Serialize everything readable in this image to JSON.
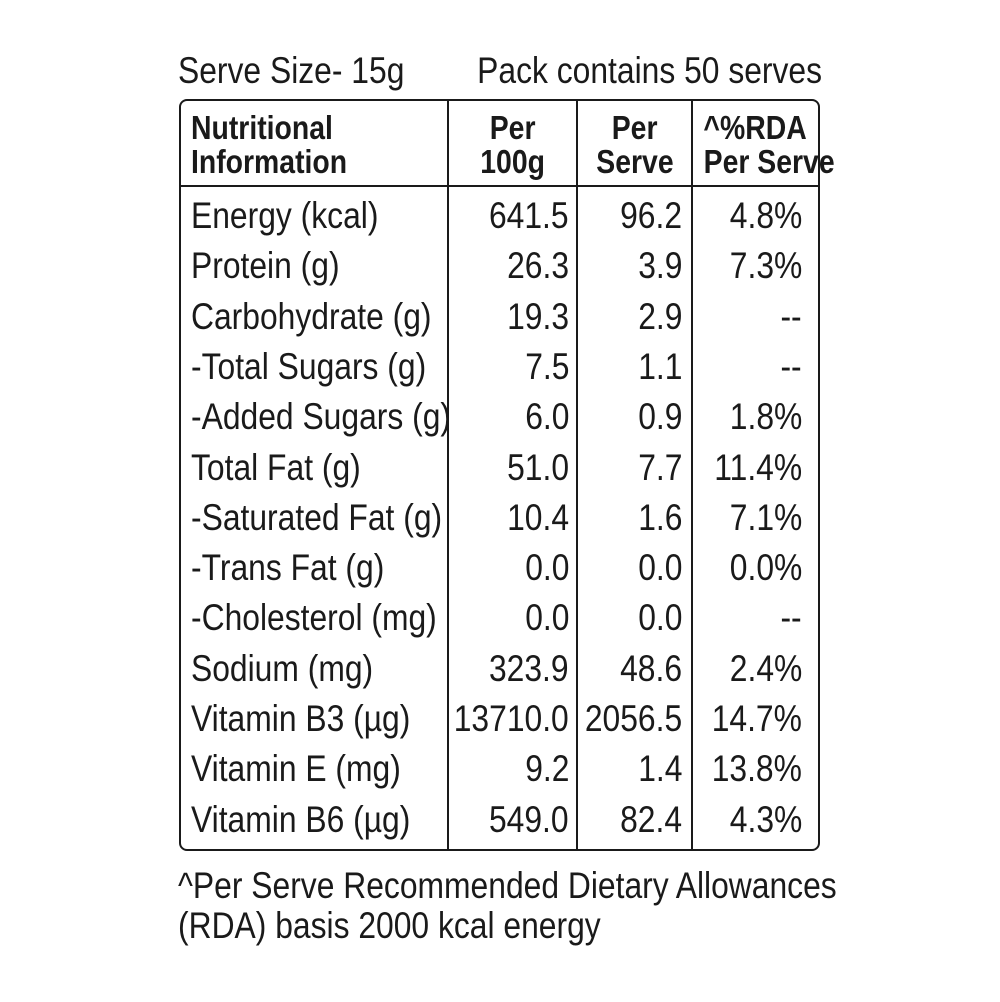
{
  "header": {
    "serve_size": "Serve Size- 15g",
    "pack_contains": "Pack contains 50 serves"
  },
  "table": {
    "columns": {
      "nutrient": [
        "Nutritional",
        "Information"
      ],
      "per_100g": [
        "Per",
        "100g"
      ],
      "per_serve": [
        "Per",
        "Serve"
      ],
      "rda": [
        "^%RDA",
        "Per Serve"
      ]
    },
    "rows": [
      {
        "name": "Energy (kcal)",
        "per_100g": "641.5",
        "per_serve": "96.2",
        "rda": "4.8%"
      },
      {
        "name": "Protein (g)",
        "per_100g": "26.3",
        "per_serve": "3.9",
        "rda": "7.3%"
      },
      {
        "name": "Carbohydrate (g)",
        "per_100g": "19.3",
        "per_serve": "2.9",
        "rda": "--"
      },
      {
        "name": "-Total Sugars (g)",
        "per_100g": "7.5",
        "per_serve": "1.1",
        "rda": "--"
      },
      {
        "name": "-Added Sugars (g)",
        "per_100g": "6.0",
        "per_serve": "0.9",
        "rda": "1.8%"
      },
      {
        "name": "Total Fat (g)",
        "per_100g": "51.0",
        "per_serve": "7.7",
        "rda": "11.4%"
      },
      {
        "name": "-Saturated Fat (g)",
        "per_100g": "10.4",
        "per_serve": "1.6",
        "rda": "7.1%"
      },
      {
        "name": "-Trans Fat (g)",
        "per_100g": "0.0",
        "per_serve": "0.0",
        "rda": "0.0%"
      },
      {
        "name": "-Cholesterol (mg)",
        "per_100g": "0.0",
        "per_serve": "0.0",
        "rda": "--"
      },
      {
        "name": "Sodium (mg)",
        "per_100g": "323.9",
        "per_serve": "48.6",
        "rda": "2.4%"
      },
      {
        "name": "Vitamin B3 (µg)",
        "per_100g": "13710.0",
        "per_serve": "2056.5",
        "rda": "14.7%"
      },
      {
        "name": "Vitamin E (mg)",
        "per_100g": "9.2",
        "per_serve": "1.4",
        "rda": "13.8%"
      },
      {
        "name": "Vitamin B6 (µg)",
        "per_100g": "549.0",
        "per_serve": "82.4",
        "rda": "4.3%"
      }
    ]
  },
  "footnote": {
    "line1": "^Per Serve Recommended Dietary Allowances",
    "line2": "(RDA) basis 2000 kcal energy"
  }
}
